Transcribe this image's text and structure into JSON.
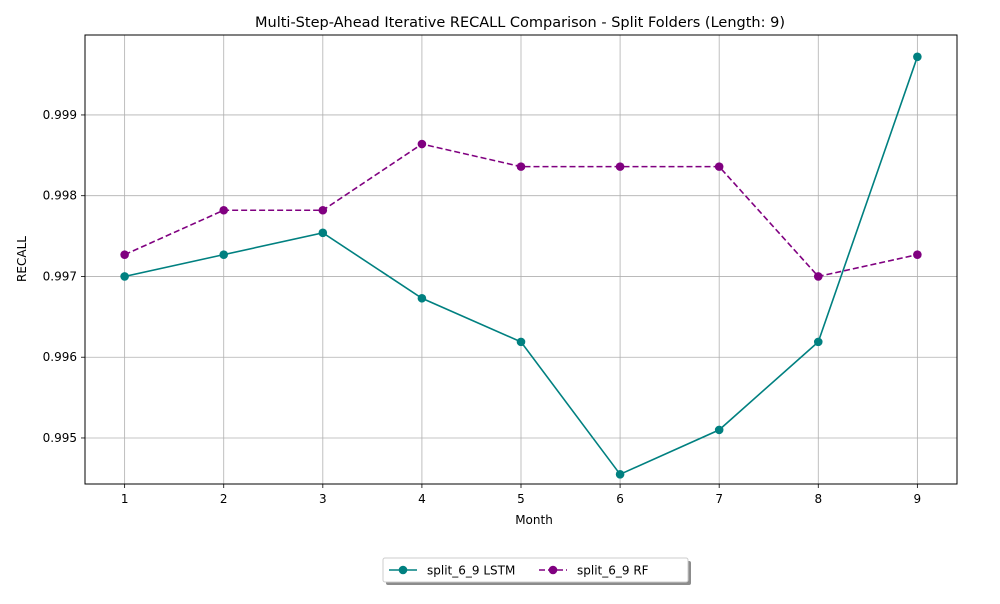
{
  "chart_data": {
    "type": "line",
    "title": "Multi-Step-Ahead Iterative RECALL Comparison - Split Folders (Length: 9)",
    "xlabel": "Month",
    "ylabel": "RECALL",
    "x": [
      1,
      2,
      3,
      4,
      5,
      6,
      7,
      8,
      9
    ],
    "xlim": [
      0.6,
      9.4
    ],
    "ylim": [
      0.99443,
      0.99999
    ],
    "yticks": [
      0.995,
      0.996,
      0.997,
      0.998,
      0.999
    ],
    "ytick_labels": [
      "0.995",
      "0.996",
      "0.997",
      "0.998",
      "0.999"
    ],
    "grid": true,
    "legend_position": "bottom-center",
    "series": [
      {
        "name": "split_6_9 LSTM",
        "color": "#008080",
        "line_style": "solid",
        "marker": "circle",
        "values": [
          0.997,
          0.99727,
          0.99754,
          0.99673,
          0.99619,
          0.99455,
          0.9951,
          0.99619,
          0.99972
        ]
      },
      {
        "name": "split_6_9 RF",
        "color": "#800080",
        "line_style": "dashed",
        "marker": "circle",
        "values": [
          0.99727,
          0.99782,
          0.99782,
          0.99864,
          0.99836,
          0.99836,
          0.99836,
          0.997,
          0.99727
        ]
      }
    ]
  }
}
